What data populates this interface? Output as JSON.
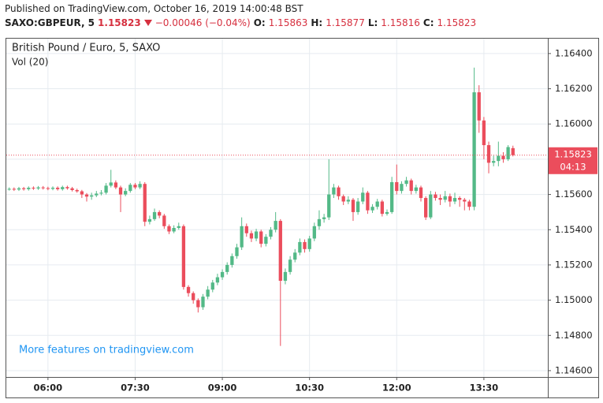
{
  "header": {
    "published": "Published on TradingView.com, October 16, 2019 14:00:48 BST",
    "symbol": "SAXO:GBPEUR, 5",
    "change": "−0.00046 (−0.04%)",
    "ohlc_labels": [
      "O:",
      "H:",
      "L:",
      "C:"
    ]
  },
  "chart_data": {
    "type": "candlestick",
    "title": "British Pound / Euro, 5, SAXO",
    "subtitle": "Vol (20)",
    "annotation": "More features on tradingview.com",
    "countdown": "04:13",
    "up_color": "#53b987",
    "down_color": "#eb4d5c",
    "grid": true,
    "last_price_line": true,
    "x": [
      320,
      325,
      330,
      335,
      340,
      345,
      350,
      355,
      360,
      365,
      370,
      375,
      380,
      385,
      390,
      395,
      400,
      405,
      410,
      415,
      420,
      425,
      430,
      435,
      440,
      445,
      450,
      455,
      460,
      465,
      470,
      475,
      480,
      485,
      490,
      495,
      500,
      505,
      510,
      515,
      520,
      525,
      530,
      535,
      540,
      545,
      550,
      555,
      560,
      565,
      570,
      575,
      580,
      585,
      590,
      595,
      600,
      605,
      610,
      615,
      620,
      625,
      630,
      635,
      640,
      645,
      650,
      655,
      660,
      665,
      670,
      675,
      680,
      685,
      690,
      695,
      700,
      705,
      710,
      715,
      720,
      725,
      730,
      735,
      740,
      745,
      750,
      755,
      760,
      765,
      770,
      775,
      780,
      785,
      790,
      795,
      800,
      805,
      810,
      815,
      820,
      825,
      830,
      835,
      840
    ],
    "open": [
      1.1563,
      1.15632,
      1.15628,
      1.15635,
      1.1563,
      1.15638,
      1.15634,
      1.1564,
      1.15636,
      1.15632,
      1.15638,
      1.1563,
      1.15642,
      1.15635,
      1.15625,
      1.15618,
      1.156,
      1.15588,
      1.15595,
      1.15605,
      1.1561,
      1.1565,
      1.15668,
      1.1564,
      1.156,
      1.1562,
      1.15655,
      1.1564,
      1.1566,
      1.15445,
      1.1546,
      1.155,
      1.1548,
      1.1542,
      1.1539,
      1.1541,
      1.1542,
      1.15075,
      1.1504,
      1.15,
      1.1496,
      1.1502,
      1.1506,
      1.151,
      1.1513,
      1.1516,
      1.152,
      1.1525,
      1.153,
      1.1542,
      1.1538,
      1.1535,
      1.1539,
      1.1532,
      1.1536,
      1.154,
      1.1545,
      1.1511,
      1.1516,
      1.1523,
      1.1527,
      1.1533,
      1.1529,
      1.1535,
      1.1542,
      1.1546,
      1.1547,
      1.156,
      1.1564,
      1.1559,
      1.1556,
      1.1557,
      1.155,
      1.1556,
      1.1561,
      1.1551,
      1.1553,
      1.1556,
      1.1549,
      1.155,
      1.1567,
      1.1562,
      1.1566,
      1.1568,
      1.1562,
      1.1564,
      1.1558,
      1.1547,
      1.156,
      1.1558,
      1.1557,
      1.1559,
      1.1556,
      1.1558,
      1.1557,
      1.1556,
      1.1553,
      1.1618,
      1.1602,
      1.1588,
      1.1578,
      1.1579,
      1.1582,
      1.158,
      1.15863
    ],
    "high": [
      1.1564,
      1.1564,
      1.15643,
      1.15643,
      1.15646,
      1.15646,
      1.15648,
      1.15648,
      1.15644,
      1.15646,
      1.15646,
      1.1565,
      1.1565,
      1.15643,
      1.15633,
      1.15626,
      1.15608,
      1.1561,
      1.1562,
      1.15625,
      1.15665,
      1.1574,
      1.1568,
      1.1565,
      1.15635,
      1.15665,
      1.15665,
      1.15675,
      1.1567,
      1.1548,
      1.1552,
      1.1551,
      1.1549,
      1.1543,
      1.15425,
      1.1544,
      1.1543,
      1.15085,
      1.1505,
      1.1501,
      1.15035,
      1.1508,
      1.15115,
      1.1515,
      1.15175,
      1.15215,
      1.15265,
      1.1532,
      1.1547,
      1.15435,
      1.15395,
      1.15405,
      1.154,
      1.15375,
      1.15415,
      1.155,
      1.1546,
      1.1518,
      1.1525,
      1.1529,
      1.1535,
      1.15345,
      1.15365,
      1.1544,
      1.1551,
      1.1549,
      1.158,
      1.1566,
      1.1565,
      1.156,
      1.1559,
      1.1558,
      1.1558,
      1.1564,
      1.1562,
      1.15545,
      1.15575,
      1.1557,
      1.15515,
      1.157,
      1.1577,
      1.15675,
      1.157,
      1.1569,
      1.15655,
      1.1565,
      1.1559,
      1.1562,
      1.15615,
      1.156,
      1.1562,
      1.15605,
      1.1561,
      1.1559,
      1.1558,
      1.1557,
      1.1632,
      1.1622,
      1.1604,
      1.159,
      1.1582,
      1.159,
      1.1584,
      1.1588,
      1.15877
    ],
    "low": [
      1.15622,
      1.1562,
      1.1562,
      1.15622,
      1.15622,
      1.15626,
      1.15626,
      1.15628,
      1.15624,
      1.15624,
      1.15622,
      1.15622,
      1.15627,
      1.15617,
      1.1561,
      1.1558,
      1.1556,
      1.1557,
      1.15585,
      1.15595,
      1.156,
      1.1564,
      1.1563,
      1.155,
      1.1559,
      1.1561,
      1.1563,
      1.1563,
      1.1542,
      1.1543,
      1.1545,
      1.15465,
      1.15405,
      1.15375,
      1.1538,
      1.154,
      1.1506,
      1.1502,
      1.1498,
      1.1493,
      1.14945,
      1.15005,
      1.15045,
      1.15085,
      1.15115,
      1.15145,
      1.15185,
      1.15235,
      1.15285,
      1.1536,
      1.1533,
      1.15335,
      1.153,
      1.15305,
      1.15345,
      1.15385,
      1.1474,
      1.1509,
      1.15145,
      1.15215,
      1.15255,
      1.1527,
      1.15275,
      1.15335,
      1.154,
      1.1544,
      1.15455,
      1.1558,
      1.1557,
      1.1554,
      1.15545,
      1.1545,
      1.15485,
      1.15545,
      1.1549,
      1.15495,
      1.15515,
      1.15475,
      1.1548,
      1.1549,
      1.156,
      1.15605,
      1.15645,
      1.156,
      1.15605,
      1.1556,
      1.15455,
      1.1546,
      1.15565,
      1.1554,
      1.15555,
      1.1553,
      1.15545,
      1.1553,
      1.1551,
      1.1551,
      1.1551,
      1.1595,
      1.158,
      1.1572,
      1.1576,
      1.1576,
      1.1578,
      1.1579,
      1.15816
    ],
    "close": [
      1.15632,
      1.15628,
      1.15635,
      1.1563,
      1.15638,
      1.15634,
      1.1564,
      1.15636,
      1.15632,
      1.15638,
      1.1563,
      1.15642,
      1.15635,
      1.15625,
      1.15618,
      1.156,
      1.15588,
      1.15595,
      1.15605,
      1.1561,
      1.1565,
      1.15668,
      1.1564,
      1.156,
      1.1562,
      1.15655,
      1.1564,
      1.1566,
      1.15445,
      1.1546,
      1.155,
      1.1548,
      1.1542,
      1.1539,
      1.1541,
      1.1542,
      1.15075,
      1.1504,
      1.15,
      1.1496,
      1.1502,
      1.1506,
      1.151,
      1.1513,
      1.1516,
      1.152,
      1.1525,
      1.153,
      1.1542,
      1.1538,
      1.1535,
      1.1539,
      1.1532,
      1.1536,
      1.154,
      1.1545,
      1.1511,
      1.1516,
      1.1523,
      1.1527,
      1.1533,
      1.1529,
      1.1535,
      1.1542,
      1.1546,
      1.1547,
      1.156,
      1.1564,
      1.1559,
      1.1556,
      1.1557,
      1.155,
      1.1556,
      1.1561,
      1.1551,
      1.1553,
      1.1556,
      1.1549,
      1.155,
      1.1567,
      1.1562,
      1.1566,
      1.1568,
      1.1562,
      1.1564,
      1.1558,
      1.1547,
      1.156,
      1.1558,
      1.1557,
      1.1559,
      1.1556,
      1.1558,
      1.1557,
      1.1556,
      1.1553,
      1.1618,
      1.1602,
      1.1588,
      1.1578,
      1.1579,
      1.1582,
      1.158,
      1.15869,
      1.15823
    ],
    "xlim": [
      317,
      876
    ],
    "ylim": [
      1.14564,
      1.16489
    ],
    "xticks": [
      {
        "value": 360,
        "label": "06:00"
      },
      {
        "value": 450,
        "label": "07:30"
      },
      {
        "value": 540,
        "label": "09:00"
      },
      {
        "value": 630,
        "label": "10:30"
      },
      {
        "value": 720,
        "label": "12:00"
      },
      {
        "value": 810,
        "label": "13:30"
      }
    ],
    "yticks": [
      {
        "value": 1.146,
        "label": "1.14600"
      },
      {
        "value": 1.148,
        "label": "1.14800"
      },
      {
        "value": 1.15,
        "label": "1.15000"
      },
      {
        "value": 1.152,
        "label": "1.15200"
      },
      {
        "value": 1.154,
        "label": "1.15400"
      },
      {
        "value": 1.156,
        "label": "1.15600"
      },
      {
        "value": 1.158,
        "label": "1.15800"
      },
      {
        "value": 1.16,
        "label": "1.16000"
      },
      {
        "value": 1.162,
        "label": "1.16200"
      },
      {
        "value": 1.164,
        "label": "1.16400"
      }
    ]
  }
}
